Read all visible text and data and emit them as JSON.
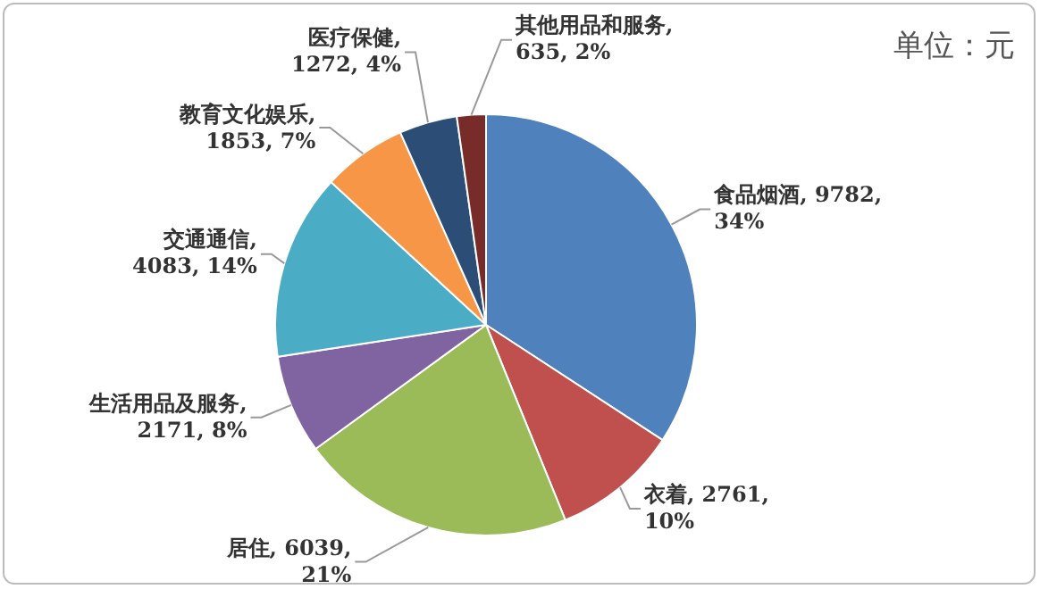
{
  "chart_data": {
    "type": "pie",
    "annotations": [
      "单位：元"
    ],
    "categories": [
      "食品烟酒",
      "衣着",
      "居住",
      "生活用品及服务",
      "交通通信",
      "教育文化娱乐",
      "医疗保健",
      "其他用品和服务"
    ],
    "values": [
      9782,
      2761,
      6039,
      2171,
      4083,
      1853,
      1272,
      635
    ],
    "value_labels": [
      ", 9782, 34%",
      ", 2761, 10%",
      ", 6039, 21%",
      ", 2171, 8%",
      ", 4083, 14%",
      ", 1853, 7%",
      ", 1272, 4%",
      ", 635, 2%"
    ],
    "colors": [
      "#4f81bd",
      "#c0504d",
      "#9bbb59",
      "#8064a2",
      "#4bacc6",
      "#f79646",
      "#2c4d75",
      "#772c2a"
    ]
  }
}
